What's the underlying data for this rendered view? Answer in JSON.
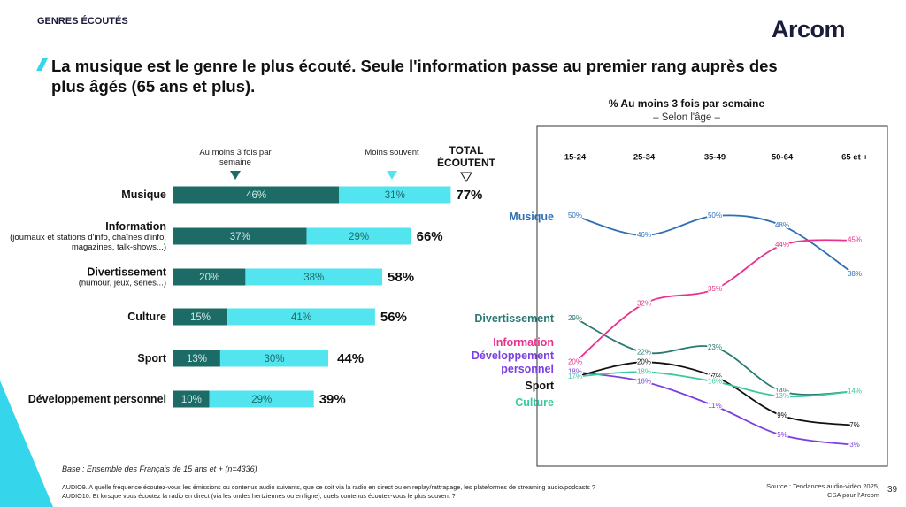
{
  "header": {
    "section": "GENRES ÉCOUTÉS",
    "logo": "Arcom",
    "title": "La musique est le genre le plus écouté. Seule l'information passe au premier rang auprès des plus âgés (65 ans et plus)."
  },
  "chart_data": [
    {
      "type": "bar",
      "orientation": "horizontal",
      "stacked": true,
      "categories": [
        "Musique",
        "Information",
        "Divertissement",
        "Culture",
        "Sport",
        "Développement personnel"
      ],
      "category_notes": [
        null,
        "(journaux et stations d'info, chaînes d'info, magazines, talk-shows...)",
        "(humour, jeux, séries...)",
        null,
        null,
        null
      ],
      "series": [
        {
          "name": "Au moins 3 fois par semaine",
          "color": "#1d6b66",
          "values": [
            46,
            37,
            20,
            15,
            13,
            10
          ],
          "value_labels": [
            "46%",
            "37%",
            "20%",
            "15%",
            "13%",
            "10%"
          ]
        },
        {
          "name": "Moins souvent",
          "color": "#52e5ef",
          "values": [
            31,
            29,
            38,
            41,
            30,
            29
          ],
          "value_labels": [
            "31%",
            "29%",
            "38%",
            "41%",
            "30%",
            "29%"
          ]
        }
      ],
      "total": {
        "name": "TOTAL ÉCOUTENT",
        "values": [
          77,
          66,
          58,
          56,
          44,
          39
        ],
        "value_labels": [
          "77%",
          "66%",
          "58%",
          "56%",
          "44%",
          "39%"
        ]
      }
    },
    {
      "type": "line",
      "title": "% Au moins 3 fois par semaine",
      "subtitle": "– Selon l'âge –",
      "categories": [
        "15-24",
        "25-34",
        "35-49",
        "50-64",
        "65  et +"
      ],
      "series": [
        {
          "name": "Musique",
          "color": "#2e6fb5",
          "values": [
            50,
            46,
            50,
            48,
            38
          ],
          "value_labels": [
            "50%",
            "46%",
            "50%",
            "48%",
            "38%"
          ]
        },
        {
          "name": "Divertissement",
          "color": "#2a7a72",
          "values": [
            29,
            22,
            23,
            14,
            14
          ],
          "value_labels": [
            "29%",
            "22%",
            "23%",
            "14%",
            "14%"
          ]
        },
        {
          "name": "Information",
          "color": "#e8328c",
          "values": [
            20,
            32,
            35,
            44,
            45
          ],
          "value_labels": [
            "20%",
            "32%",
            "35%",
            "44%",
            "45%"
          ]
        },
        {
          "name": "Développement personnel",
          "color": "#7b3fe4",
          "values": [
            18,
            16,
            11,
            5,
            3
          ],
          "value_labels": [
            "18%",
            "16%",
            "11%",
            "5%",
            "3%"
          ]
        },
        {
          "name": "Sport",
          "color": "#111111",
          "values": [
            17,
            20,
            17,
            9,
            7
          ],
          "value_labels": [
            "17%",
            "20%",
            "17%",
            "9%",
            "7%"
          ]
        },
        {
          "name": "Culture",
          "color": "#3cc9a0",
          "values": [
            17,
            18,
            16,
            13,
            14
          ],
          "value_labels": [
            "17%",
            "18%",
            "16%",
            "13%",
            "14%"
          ]
        }
      ]
    }
  ],
  "footer": {
    "base": "Base : Ensemble des Français de 15 ans et + (n=4336)",
    "notes": [
      "AUDIO9. A quelle fréquence écoutez-vous les émissions ou contenus audio suivants, que ce soit via la radio en direct ou en replay/rattrapage, les plateformes de streaming audio/podcasts ?",
      "AUDIO10. Et lorsque vous écoutez la radio en direct (via les ondes hertziennes ou en ligne), quels contenus écoutez-vous le plus souvent ?"
    ],
    "source": "Source : Tendances audio-vidéo 2025, CSA pour l'Arcom",
    "page": "39"
  }
}
